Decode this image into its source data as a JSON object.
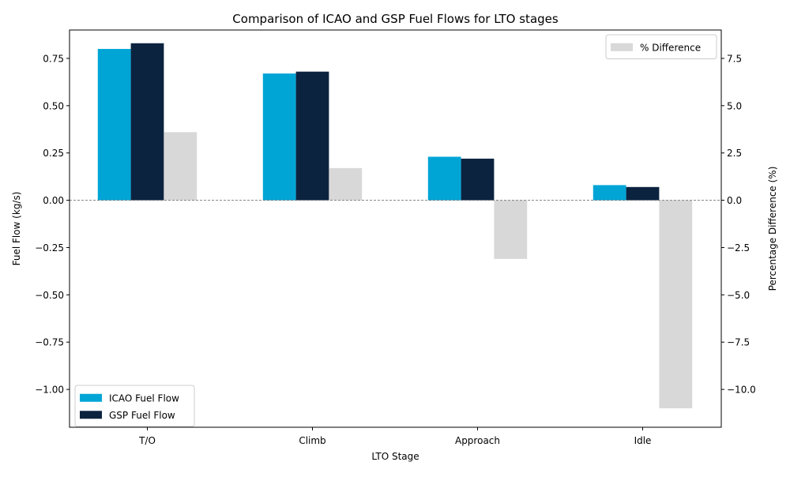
{
  "chart_data": {
    "type": "bar",
    "title": "Comparison of ICAO and GSP Fuel Flows for LTO stages",
    "xlabel": "LTO Stage",
    "ylabel": "Fuel Flow (kg/s)",
    "y2label": "Percentage Difference (%)",
    "categories": [
      "T/O",
      "Climb",
      "Approach",
      "Idle"
    ],
    "ylim": [
      -1.2,
      0.9
    ],
    "y2lim": [
      -12,
      9
    ],
    "yticks": [
      -1.0,
      -0.75,
      -0.5,
      -0.25,
      0.0,
      0.25,
      0.5,
      0.75
    ],
    "yticklabels": [
      "−1.00",
      "−0.75",
      "−0.50",
      "−0.25",
      "0.00",
      "0.25",
      "0.50",
      "0.75"
    ],
    "y2ticks": [
      -10.0,
      -7.5,
      -5.0,
      -2.5,
      0.0,
      2.5,
      5.0,
      7.5
    ],
    "y2ticklabels": [
      "−10.0",
      "−7.5",
      "−5.0",
      "−2.5",
      "0.0",
      "2.5",
      "5.0",
      "7.5"
    ],
    "grid": false,
    "zero_line": true,
    "series": [
      {
        "name": "ICAO Fuel Flow",
        "axis": "left",
        "color": "#00a5d6",
        "values": [
          0.8,
          0.67,
          0.23,
          0.08
        ]
      },
      {
        "name": "GSP Fuel Flow",
        "axis": "left",
        "color": "#0c2340",
        "values": [
          0.83,
          0.68,
          0.22,
          0.07
        ]
      },
      {
        "name": "% Difference",
        "axis": "right",
        "color": "#d8d8d8",
        "values": [
          3.6,
          1.7,
          -3.1,
          -11.0
        ]
      }
    ],
    "legends": [
      {
        "placement": "lower-left",
        "entries": [
          "ICAO Fuel Flow",
          "GSP Fuel Flow"
        ]
      },
      {
        "placement": "upper-right",
        "entries": [
          "% Difference"
        ]
      }
    ]
  }
}
